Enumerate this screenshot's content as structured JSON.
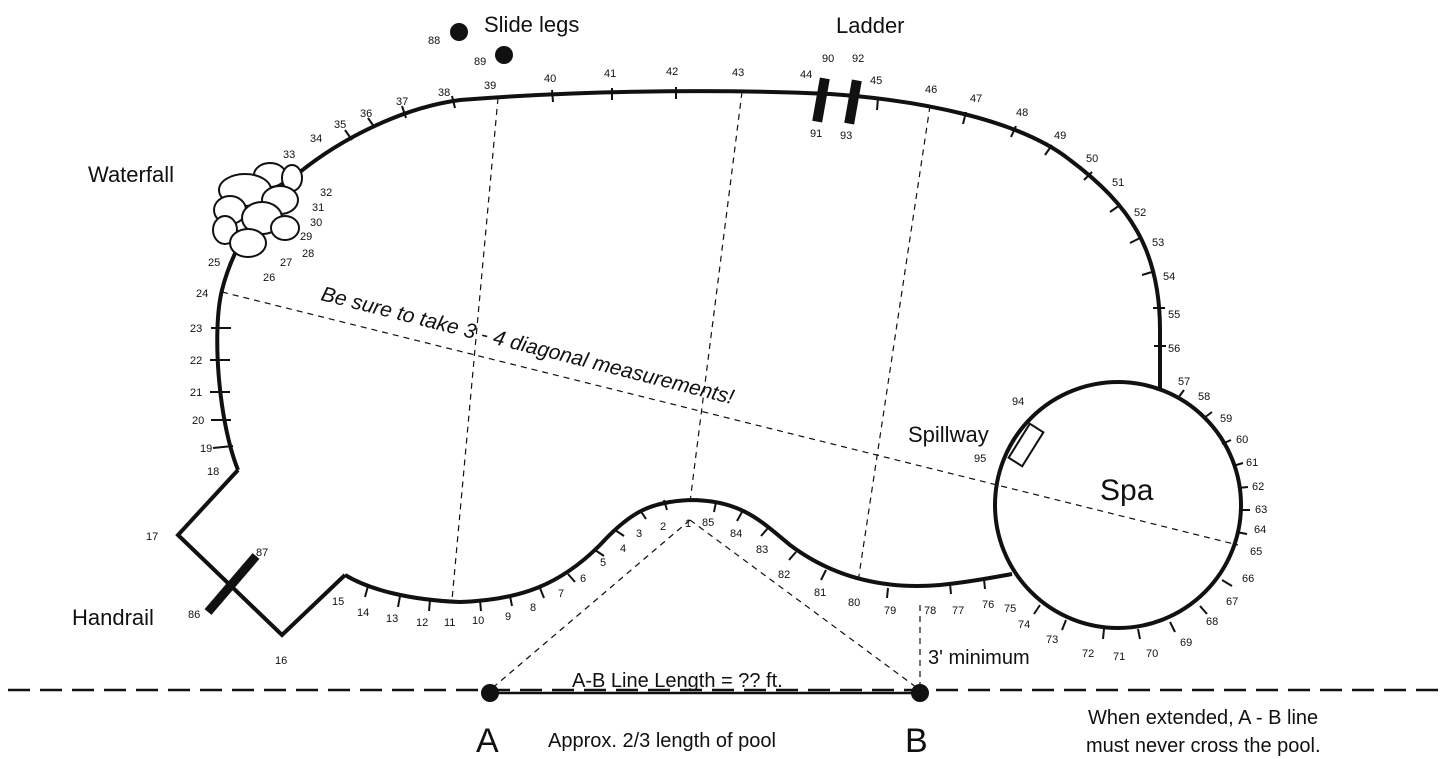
{
  "labels": {
    "slide_legs": "Slide legs",
    "ladder": "Ladder",
    "waterfall": "Waterfall",
    "handrail": "Handrail",
    "spillway": "Spillway",
    "spa": "Spa",
    "diagonal_note": "Be sure to take 3 - 4 diagonal measurements!",
    "ab_line_length": "A-B Line Length = ?? ft.",
    "three_minimum": "3' minimum",
    "approx": "Approx. 2/3 length of pool",
    "point_a": "A",
    "point_b": "B",
    "warning_1": "When extended, A - B line",
    "warning_2": "must never cross the pool."
  },
  "points": [
    "1",
    "2",
    "3",
    "4",
    "5",
    "6",
    "7",
    "8",
    "9",
    "10",
    "11",
    "12",
    "13",
    "14",
    "15",
    "16",
    "17",
    "18",
    "19",
    "20",
    "21",
    "22",
    "23",
    "24",
    "25",
    "26",
    "27",
    "28",
    "29",
    "30",
    "31",
    "32",
    "33",
    "34",
    "35",
    "36",
    "37",
    "38",
    "39",
    "40",
    "41",
    "42",
    "43",
    "44",
    "45",
    "46",
    "47",
    "48",
    "49",
    "50",
    "51",
    "52",
    "53",
    "54",
    "55",
    "56",
    "57",
    "58",
    "59",
    "60",
    "61",
    "62",
    "63",
    "64",
    "65",
    "66",
    "67",
    "68",
    "69",
    "70",
    "71",
    "72",
    "73",
    "74",
    "75",
    "76",
    "77",
    "78",
    "79",
    "80",
    "81",
    "82",
    "83",
    "84",
    "85",
    "86",
    "87",
    "88",
    "89",
    "90",
    "91",
    "92",
    "93",
    "94",
    "95"
  ]
}
